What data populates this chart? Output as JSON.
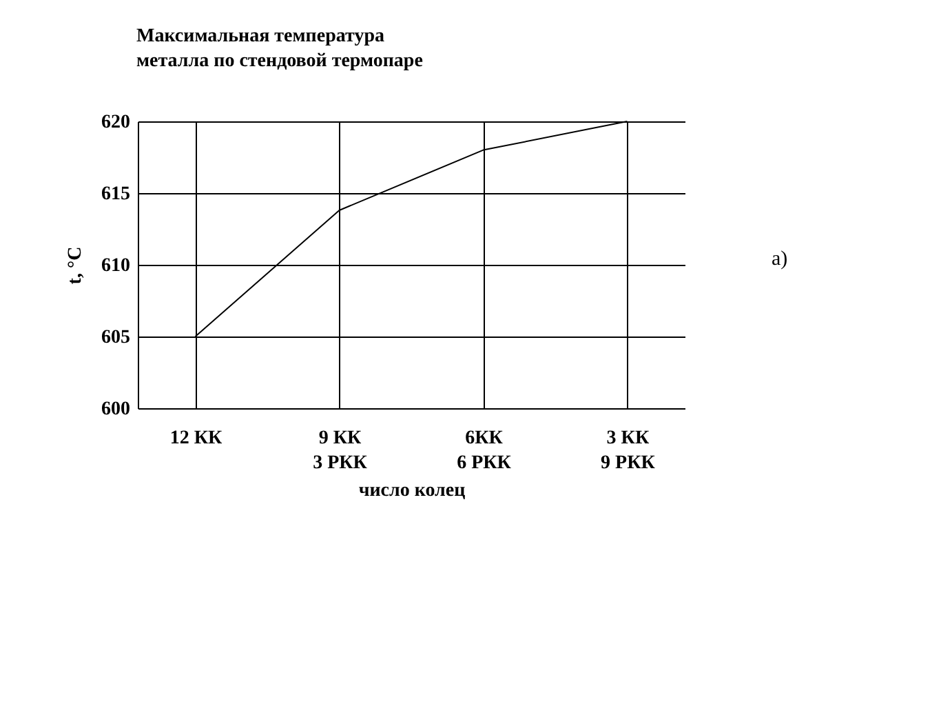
{
  "chart_data": {
    "type": "line",
    "title": [
      "Максимальная температура",
      "металла по стендовой термопаре"
    ],
    "categories": [
      "12 КК",
      "9 КК\n3 РКК",
      "6КК\n6 РКК",
      "3 КК\n9 РКК"
    ],
    "series": [
      {
        "color": "#000000",
        "values": [
          605,
          613.8,
          618,
          620
        ]
      }
    ],
    "xlabel": "число колец",
    "ylabel": "t, °C",
    "ylim": [
      600,
      620
    ],
    "yticks": [
      600,
      605,
      610,
      615,
      620
    ],
    "grid": true,
    "marker": "none",
    "line_style": "solid",
    "annotations": [
      "а)"
    ]
  }
}
